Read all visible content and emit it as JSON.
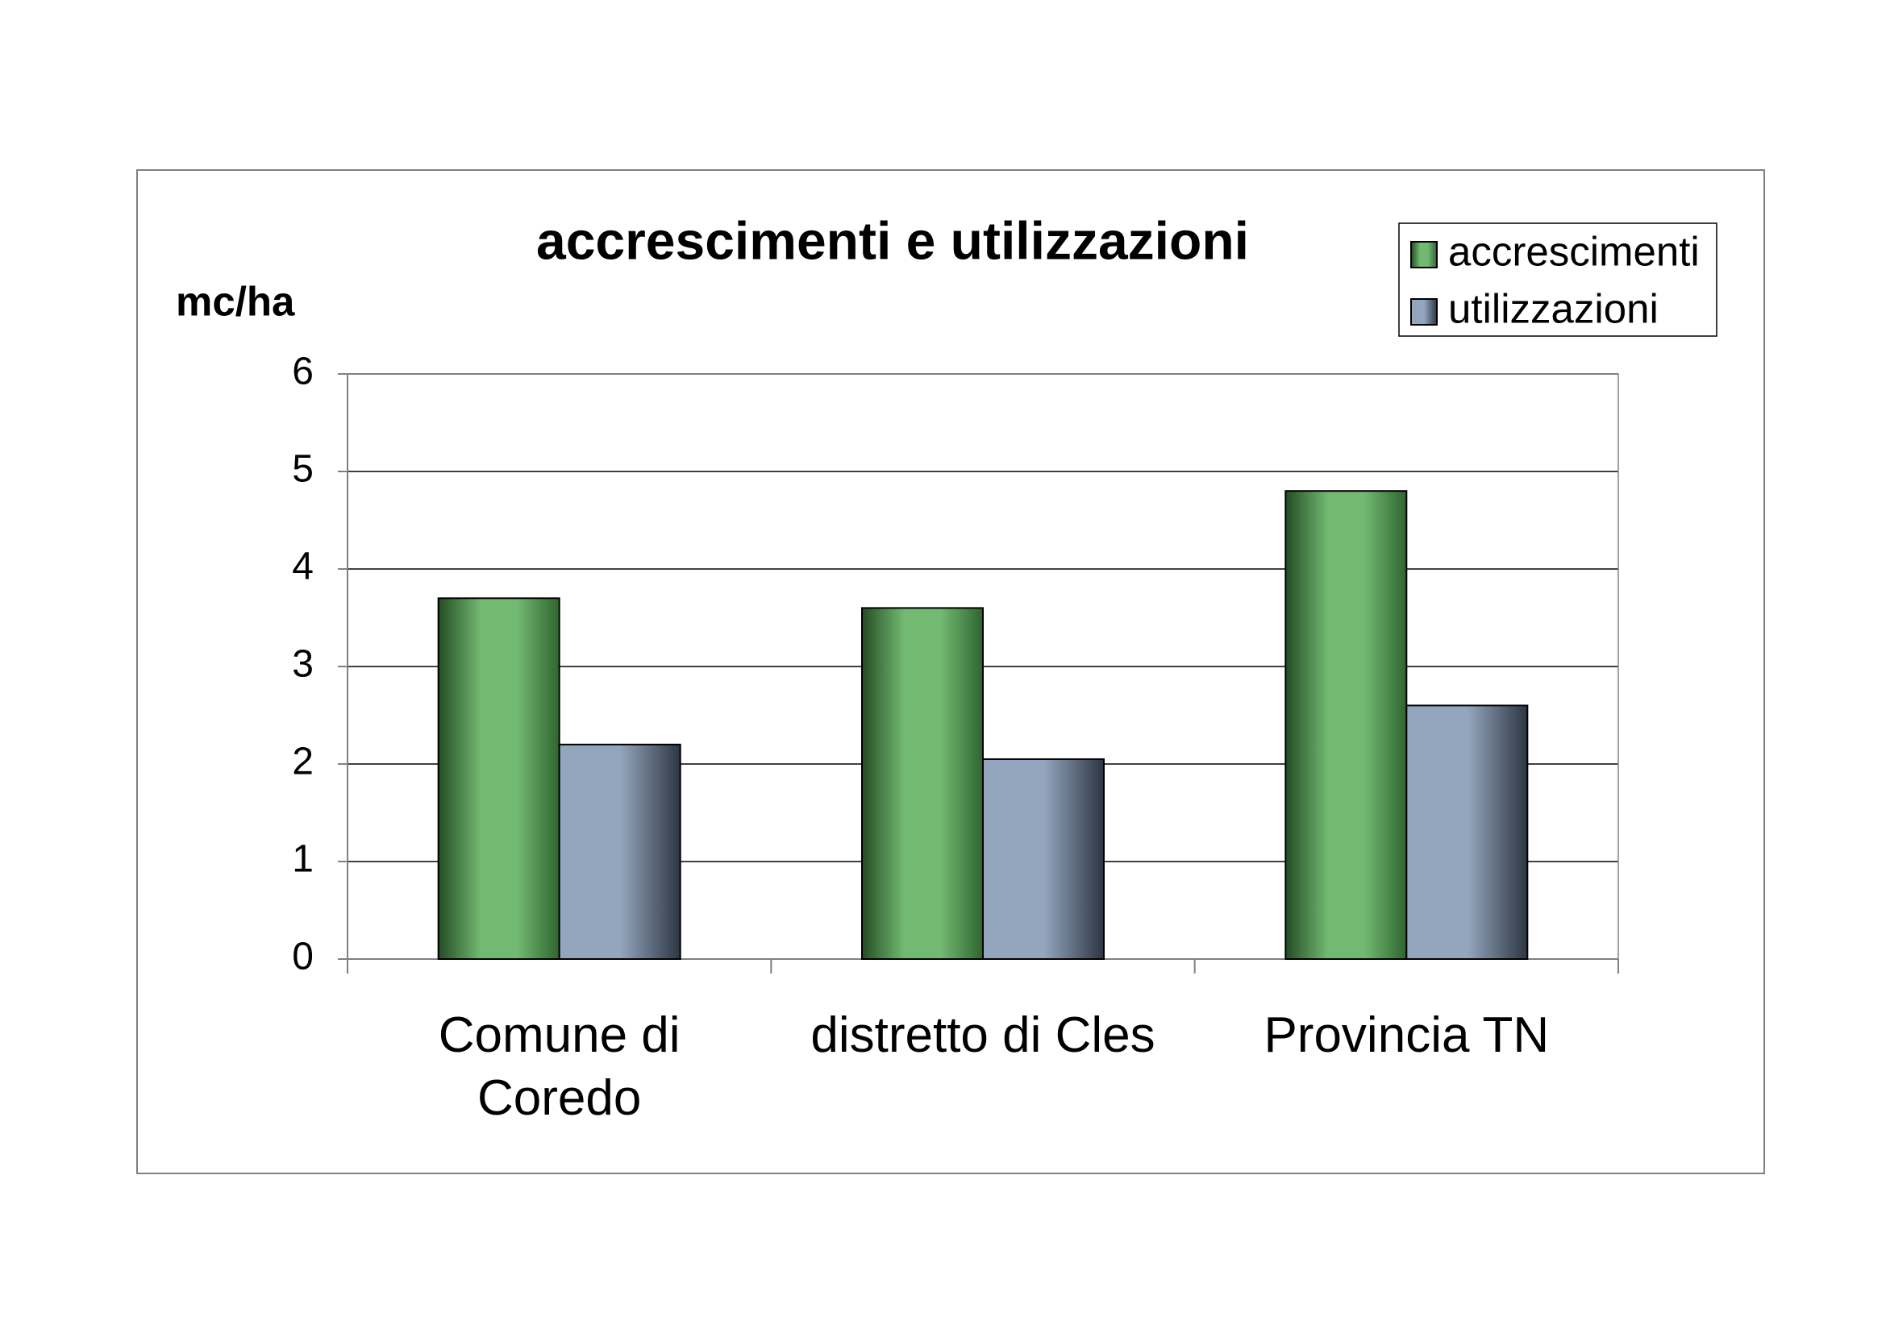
{
  "chart_data": {
    "type": "bar",
    "title": "accrescimenti e utilizzazioni",
    "y_label": "mc/ha",
    "categories": [
      "Comune di\nCoredo",
      "distretto di Cles",
      "Provincia TN"
    ],
    "series": [
      {
        "name": "accrescimenti",
        "color": "#4fa84f",
        "values": [
          3.7,
          3.6,
          4.8
        ]
      },
      {
        "name": "utilizzazioni",
        "color": "#7088a8",
        "values": [
          2.2,
          2.05,
          2.6
        ]
      }
    ],
    "ylim": [
      0,
      6
    ],
    "yticks": [
      0,
      1,
      2,
      3,
      4,
      5,
      6
    ],
    "grid": true,
    "legend": "top-right"
  }
}
